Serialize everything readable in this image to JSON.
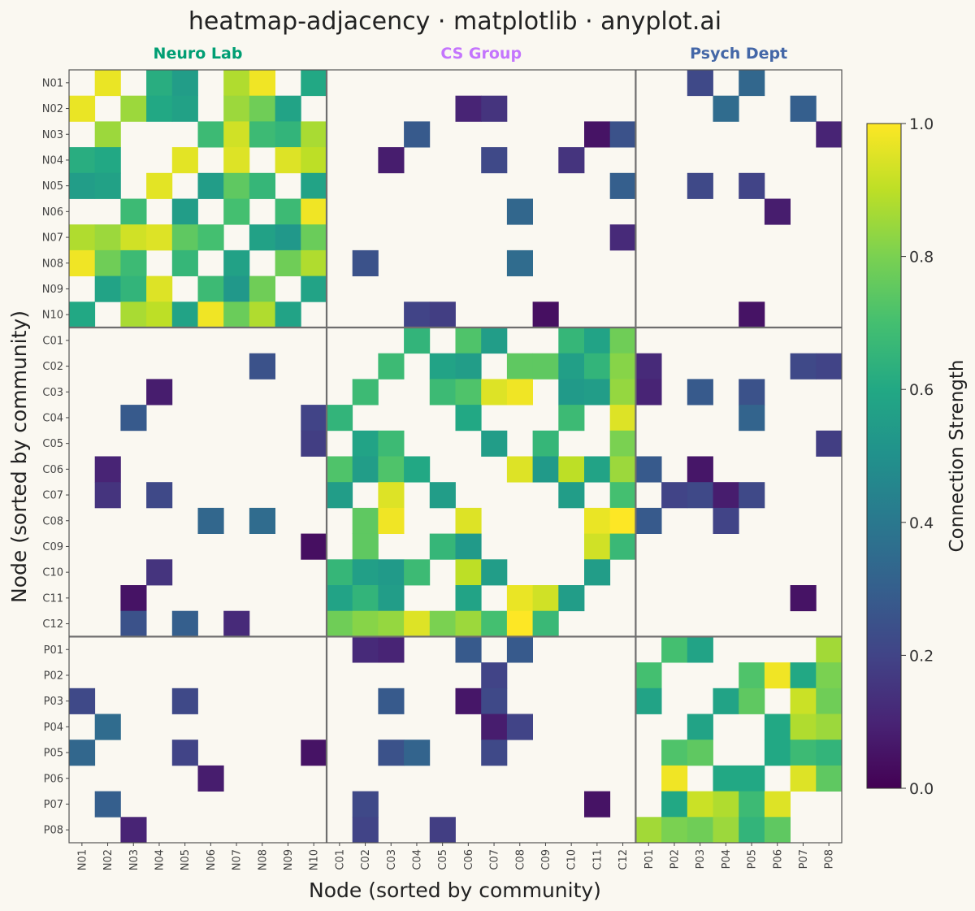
{
  "chart_data": {
    "type": "heatmap",
    "title": "heatmap-adjacency · matplotlib · anyplot.ai",
    "xlabel": "Node (sorted by community)",
    "ylabel": "Node (sorted by community)",
    "colorbar": {
      "label": "Connection Strength",
      "range": [
        0,
        1
      ],
      "ticks": [
        "0.0",
        "0.2",
        "0.4",
        "0.6",
        "0.8",
        "1.0"
      ],
      "colormap": "viridis"
    },
    "communities": [
      {
        "name": "Neuro Lab",
        "color": "#009E73",
        "nodes": [
          "N01",
          "N02",
          "N03",
          "N04",
          "N05",
          "N06",
          "N07",
          "N08",
          "N09",
          "N10"
        ]
      },
      {
        "name": "CS Group",
        "color": "#C475FD",
        "nodes": [
          "C01",
          "C02",
          "C03",
          "C04",
          "C05",
          "C06",
          "C07",
          "C08",
          "C09",
          "C10",
          "C11",
          "C12"
        ]
      },
      {
        "name": "Psych Dept",
        "color": "#4467A7",
        "nodes": [
          "P01",
          "P02",
          "P03",
          "P04",
          "P05",
          "P06",
          "P07",
          "P08"
        ]
      }
    ],
    "nodes": [
      "N01",
      "N02",
      "N03",
      "N04",
      "N05",
      "N06",
      "N07",
      "N08",
      "N09",
      "N10",
      "C01",
      "C02",
      "C03",
      "C04",
      "C05",
      "C06",
      "C07",
      "C08",
      "C09",
      "C10",
      "C11",
      "C12",
      "P01",
      "P02",
      "P03",
      "P04",
      "P05",
      "P06",
      "P07",
      "P08"
    ],
    "zero_color": "#FAF8F1",
    "edges": [
      [
        "N01",
        "N02",
        0.97
      ],
      [
        "N01",
        "N04",
        0.62
      ],
      [
        "N01",
        "N05",
        0.55
      ],
      [
        "N01",
        "N07",
        0.88
      ],
      [
        "N01",
        "N08",
        0.98
      ],
      [
        "N01",
        "N10",
        0.6
      ],
      [
        "N02",
        "N03",
        0.85
      ],
      [
        "N02",
        "N04",
        0.6
      ],
      [
        "N02",
        "N05",
        0.57
      ],
      [
        "N02",
        "N07",
        0.85
      ],
      [
        "N02",
        "N08",
        0.78
      ],
      [
        "N02",
        "N09",
        0.58
      ],
      [
        "N03",
        "N06",
        0.68
      ],
      [
        "N03",
        "N07",
        0.93
      ],
      [
        "N03",
        "N08",
        0.68
      ],
      [
        "N03",
        "N09",
        0.65
      ],
      [
        "N03",
        "N10",
        0.87
      ],
      [
        "N04",
        "N05",
        0.96
      ],
      [
        "N04",
        "N07",
        0.95
      ],
      [
        "N04",
        "N09",
        0.95
      ],
      [
        "N04",
        "N10",
        0.9
      ],
      [
        "N05",
        "N06",
        0.55
      ],
      [
        "N05",
        "N07",
        0.75
      ],
      [
        "N05",
        "N08",
        0.66
      ],
      [
        "N05",
        "N10",
        0.58
      ],
      [
        "N06",
        "N07",
        0.7
      ],
      [
        "N06",
        "N09",
        0.68
      ],
      [
        "N06",
        "N10",
        0.98
      ],
      [
        "N07",
        "N08",
        0.57
      ],
      [
        "N07",
        "N09",
        0.53
      ],
      [
        "N07",
        "N10",
        0.77
      ],
      [
        "N08",
        "N09",
        0.78
      ],
      [
        "N08",
        "N10",
        0.88
      ],
      [
        "N09",
        "N10",
        0.58
      ],
      [
        "N01",
        "P03",
        0.22
      ],
      [
        "N01",
        "P05",
        0.33
      ],
      [
        "N02",
        "C06",
        0.1
      ],
      [
        "N02",
        "C07",
        0.15
      ],
      [
        "N02",
        "P04",
        0.35
      ],
      [
        "N02",
        "P07",
        0.3
      ],
      [
        "N03",
        "C04",
        0.28
      ],
      [
        "N03",
        "C11",
        0.05
      ],
      [
        "N03",
        "C12",
        0.25
      ],
      [
        "N03",
        "P08",
        0.1
      ],
      [
        "N04",
        "C03",
        0.08
      ],
      [
        "N04",
        "C07",
        0.22
      ],
      [
        "N04",
        "C10",
        0.15
      ],
      [
        "N05",
        "C12",
        0.3
      ],
      [
        "N05",
        "P03",
        0.22
      ],
      [
        "N05",
        "P05",
        0.2
      ],
      [
        "N06",
        "C08",
        0.33
      ],
      [
        "N06",
        "P06",
        0.08
      ],
      [
        "N07",
        "C12",
        0.12
      ],
      [
        "N08",
        "C02",
        0.25
      ],
      [
        "N08",
        "C08",
        0.35
      ],
      [
        "N10",
        "C04",
        0.2
      ],
      [
        "N10",
        "C05",
        0.18
      ],
      [
        "N10",
        "C09",
        0.04
      ],
      [
        "N10",
        "P05",
        0.05
      ],
      [
        "C01",
        "C04",
        0.65
      ],
      [
        "C01",
        "C06",
        0.72
      ],
      [
        "C01",
        "C07",
        0.55
      ],
      [
        "C01",
        "C10",
        0.66
      ],
      [
        "C01",
        "C11",
        0.58
      ],
      [
        "C01",
        "C12",
        0.78
      ],
      [
        "C02",
        "C03",
        0.68
      ],
      [
        "C02",
        "C05",
        0.58
      ],
      [
        "C02",
        "C06",
        0.55
      ],
      [
        "C02",
        "C08",
        0.75
      ],
      [
        "C02",
        "C09",
        0.75
      ],
      [
        "C02",
        "C10",
        0.56
      ],
      [
        "C02",
        "C11",
        0.65
      ],
      [
        "C02",
        "C12",
        0.82
      ],
      [
        "C02",
        "P01",
        0.12
      ],
      [
        "C02",
        "P07",
        0.22
      ],
      [
        "C02",
        "P08",
        0.2
      ],
      [
        "C03",
        "C05",
        0.68
      ],
      [
        "C03",
        "C06",
        0.72
      ],
      [
        "C03",
        "C07",
        0.95
      ],
      [
        "C03",
        "C08",
        0.98
      ],
      [
        "C03",
        "C10",
        0.54
      ],
      [
        "C03",
        "C11",
        0.55
      ],
      [
        "C03",
        "C12",
        0.84
      ],
      [
        "C03",
        "P01",
        0.1
      ],
      [
        "C03",
        "P03",
        0.28
      ],
      [
        "C03",
        "P05",
        0.25
      ],
      [
        "C04",
        "C06",
        0.6
      ],
      [
        "C04",
        "C10",
        0.68
      ],
      [
        "C04",
        "C12",
        0.95
      ],
      [
        "C04",
        "P05",
        0.32
      ],
      [
        "C05",
        "C07",
        0.55
      ],
      [
        "C05",
        "C09",
        0.66
      ],
      [
        "C05",
        "C12",
        0.8
      ],
      [
        "C05",
        "P08",
        0.18
      ],
      [
        "C06",
        "C08",
        0.95
      ],
      [
        "C06",
        "C09",
        0.54
      ],
      [
        "C06",
        "C10",
        0.9
      ],
      [
        "C06",
        "C11",
        0.58
      ],
      [
        "C06",
        "C12",
        0.85
      ],
      [
        "C06",
        "P01",
        0.28
      ],
      [
        "C06",
        "P03",
        0.06
      ],
      [
        "C07",
        "C10",
        0.55
      ],
      [
        "C07",
        "C12",
        0.7
      ],
      [
        "C07",
        "P02",
        0.2
      ],
      [
        "C07",
        "P03",
        0.22
      ],
      [
        "C07",
        "P04",
        0.08
      ],
      [
        "C07",
        "P05",
        0.22
      ],
      [
        "C08",
        "C11",
        0.97
      ],
      [
        "C08",
        "C12",
        1.0
      ],
      [
        "C08",
        "P01",
        0.28
      ],
      [
        "C08",
        "P04",
        0.2
      ],
      [
        "C09",
        "C11",
        0.93
      ],
      [
        "C09",
        "C12",
        0.67
      ],
      [
        "C10",
        "C11",
        0.55
      ],
      [
        "C11",
        "P07",
        0.05
      ],
      [
        "P01",
        "P02",
        0.7
      ],
      [
        "P01",
        "P03",
        0.58
      ],
      [
        "P01",
        "P08",
        0.86
      ],
      [
        "P02",
        "P05",
        0.72
      ],
      [
        "P02",
        "P06",
        0.98
      ],
      [
        "P02",
        "P07",
        0.6
      ],
      [
        "P02",
        "P08",
        0.8
      ],
      [
        "P03",
        "P04",
        0.58
      ],
      [
        "P03",
        "P05",
        0.75
      ],
      [
        "P03",
        "P07",
        0.92
      ],
      [
        "P03",
        "P08",
        0.78
      ],
      [
        "P04",
        "P06",
        0.6
      ],
      [
        "P04",
        "P07",
        0.88
      ],
      [
        "P04",
        "P08",
        0.85
      ],
      [
        "P05",
        "P06",
        0.6
      ],
      [
        "P05",
        "P07",
        0.68
      ],
      [
        "P05",
        "P08",
        0.65
      ],
      [
        "P06",
        "P07",
        0.95
      ],
      [
        "P06",
        "P08",
        0.75
      ]
    ]
  }
}
